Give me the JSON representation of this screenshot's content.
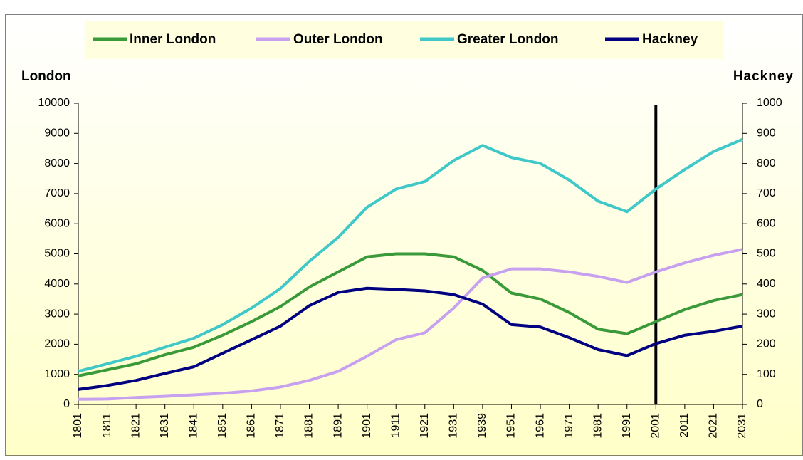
{
  "chart_data": {
    "type": "line",
    "y_label": "London",
    "y2_label": "Hackney",
    "categories": [
      "1801",
      "1811",
      "1821",
      "1831",
      "1841",
      "1851",
      "1861",
      "1871",
      "1881",
      "1891",
      "1901",
      "1911",
      "1921",
      "1931",
      "1939",
      "1951",
      "1961",
      "1971",
      "1981",
      "1991",
      "2001",
      "2011",
      "2021",
      "2031"
    ],
    "series": [
      {
        "name": "Inner London",
        "color": "#3a9a3a",
        "values": [
          950,
          1150,
          1350,
          1650,
          1900,
          2300,
          2750,
          3250,
          3900,
          4400,
          4900,
          5000,
          5000,
          4900,
          4450,
          3700,
          3500,
          3050,
          2500,
          2350,
          2750,
          3150,
          3450,
          3650
        ]
      },
      {
        "name": "Outer London",
        "color": "#c8a0f0",
        "values": [
          170,
          180,
          230,
          270,
          320,
          370,
          450,
          580,
          800,
          1100,
          1600,
          2150,
          2380,
          3200,
          4200,
          4500,
          4500,
          4400,
          4250,
          4050,
          4400,
          4700,
          4950,
          5150
        ]
      },
      {
        "name": "Greater London",
        "color": "#40c8c8",
        "values": [
          1100,
          1350,
          1600,
          1900,
          2200,
          2650,
          3200,
          3850,
          4750,
          5550,
          6550,
          7150,
          7400,
          8100,
          8600,
          8200,
          8000,
          7450,
          6750,
          6400,
          7150,
          7800,
          8400,
          8800
        ]
      },
      {
        "name": "Hackney",
        "color": "#000080",
        "axis": "y2",
        "values": [
          50,
          63,
          80,
          103,
          125,
          170,
          215,
          260,
          328,
          372,
          386,
          382,
          377,
          365,
          333,
          265,
          257,
          222,
          182,
          162,
          202,
          230,
          243,
          260
        ]
      }
    ],
    "ylim": [
      0,
      10000
    ],
    "yticks": [
      0,
      1000,
      2000,
      3000,
      4000,
      5000,
      6000,
      7000,
      8000,
      9000,
      10000
    ],
    "y2lim": [
      0,
      1000
    ],
    "y2ticks": [
      0,
      100,
      200,
      300,
      400,
      500,
      600,
      700,
      800,
      900,
      1000
    ],
    "vline_category": "2001",
    "legend": "top"
  }
}
